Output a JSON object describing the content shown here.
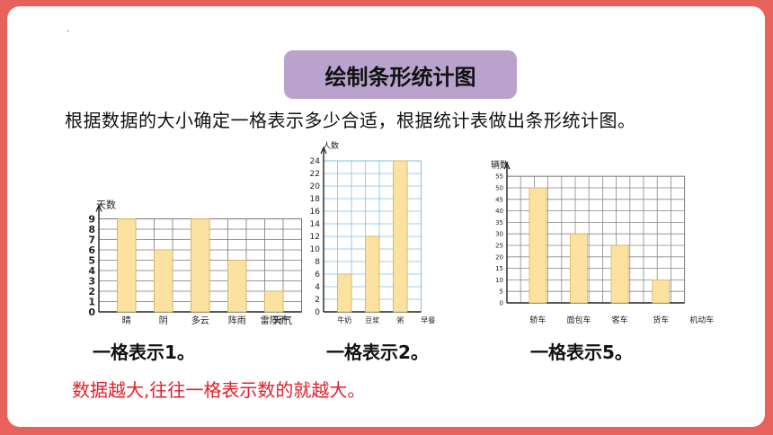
{
  "title": "绘制条形统计图",
  "intro": "根据数据的大小确定一格表示多少合适，根据统计表做出条形统计图。",
  "dot": "·",
  "captions": [
    "一格表示1。",
    "一格表示2。",
    "一格表示5。"
  ],
  "conclusion": "数据越大,往往一格表示数的就越大。",
  "colors": {
    "bar": "#fbe2a0",
    "bar_stroke": "#d8b45a",
    "grid1": "#777777",
    "grid2": "#7fc1e8",
    "grid3": "#888888",
    "frame": "#e8615a",
    "title_bg": "#b9a3cc",
    "conclusion": "#e0202a"
  },
  "chart_data": [
    {
      "type": "bar",
      "ylabel": "天数",
      "xlabel": "天气",
      "categories": [
        "晴",
        "阴",
        "多云",
        "阵雨",
        "雷阵雨"
      ],
      "values": [
        9,
        6,
        9,
        5,
        2
      ],
      "ylim": [
        0,
        9
      ],
      "yticks": [
        0,
        1,
        2,
        3,
        4,
        5,
        6,
        7,
        8,
        9
      ],
      "grid": true
    },
    {
      "type": "bar",
      "ylabel": "人数",
      "categories": [
        "牛奶",
        "豆浆",
        "粥",
        "早餐"
      ],
      "values": [
        6,
        12,
        24,
        null
      ],
      "ylim": [
        0,
        24
      ],
      "yticks": [
        0,
        2,
        4,
        6,
        8,
        10,
        12,
        14,
        16,
        18,
        20,
        22,
        24
      ],
      "grid": true
    },
    {
      "type": "bar",
      "ylabel": "辆数",
      "categories": [
        "轿车",
        "面包车",
        "客车",
        "货车",
        "机动车"
      ],
      "values": [
        50,
        30,
        25,
        10,
        null
      ],
      "ylim": [
        0,
        55
      ],
      "yticks": [
        0,
        5,
        10,
        15,
        20,
        25,
        30,
        35,
        40,
        45,
        50,
        55
      ],
      "grid": true
    }
  ]
}
